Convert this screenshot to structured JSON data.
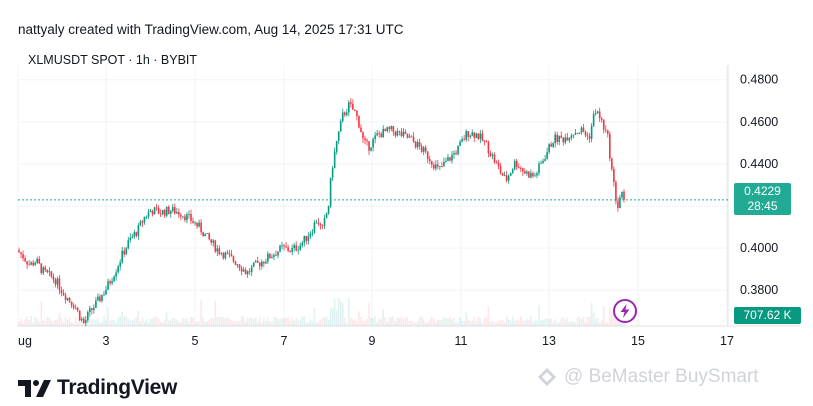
{
  "header": {
    "text": "nattyaly created with TradingView.com, Aug 14, 2025 17:31 UTC"
  },
  "symbol": {
    "text": "XLMUSDT SPOT · 1h · BYBIT"
  },
  "price_badge": {
    "price": "0.4229",
    "countdown": "28:45"
  },
  "volume_badge": {
    "text": "707.62 K"
  },
  "logo": {
    "text": "TradingView"
  },
  "watermark": {
    "text": "@ BeMaster BuySmart"
  },
  "colors": {
    "up": "#089981",
    "down": "#f23645",
    "price_line": "#22ab94",
    "grid": "#f0f3fa"
  },
  "chart_data": {
    "type": "candlestick",
    "y_ticks": [
      "0.4800",
      "0.4600",
      "0.4400",
      "0.4000",
      "0.3800"
    ],
    "x_ticks": [
      "ug",
      "3",
      "5",
      "7",
      "9",
      "11",
      "13",
      "15",
      "17"
    ],
    "ylim": [
      0.363,
      0.487
    ],
    "last_price": 0.4229,
    "path": [
      [
        0.0,
        0.399
      ],
      [
        0.2,
        0.396
      ],
      [
        0.4,
        0.392
      ],
      [
        0.6,
        0.394
      ],
      [
        0.8,
        0.389
      ],
      [
        1.0,
        0.387
      ],
      [
        1.2,
        0.385
      ],
      [
        1.4,
        0.38
      ],
      [
        1.6,
        0.376
      ],
      [
        1.8,
        0.373
      ],
      [
        1.95,
        0.368
      ],
      [
        2.1,
        0.364
      ],
      [
        2.25,
        0.369
      ],
      [
        2.5,
        0.374
      ],
      [
        2.8,
        0.381
      ],
      [
        3.1,
        0.39
      ],
      [
        3.3,
        0.397
      ],
      [
        3.5,
        0.403
      ],
      [
        3.8,
        0.409
      ],
      [
        4.0,
        0.415
      ],
      [
        4.2,
        0.418
      ],
      [
        4.5,
        0.417
      ],
      [
        4.8,
        0.418
      ],
      [
        5.1,
        0.417
      ],
      [
        5.4,
        0.414
      ],
      [
        5.7,
        0.41
      ],
      [
        6.0,
        0.404
      ],
      [
        6.3,
        0.399
      ],
      [
        6.6,
        0.396
      ],
      [
        6.9,
        0.393
      ],
      [
        7.2,
        0.388
      ],
      [
        7.4,
        0.391
      ],
      [
        7.7,
        0.394
      ],
      [
        8.0,
        0.397
      ],
      [
        8.3,
        0.4
      ],
      [
        8.6,
        0.399
      ],
      [
        8.9,
        0.402
      ],
      [
        9.2,
        0.408
      ],
      [
        9.4,
        0.414
      ],
      [
        9.55,
        0.408
      ],
      [
        9.75,
        0.42
      ],
      [
        9.85,
        0.437
      ],
      [
        10.0,
        0.45
      ],
      [
        10.2,
        0.463
      ],
      [
        10.4,
        0.468
      ],
      [
        10.6,
        0.464
      ],
      [
        10.75,
        0.457
      ],
      [
        10.85,
        0.45
      ],
      [
        11.0,
        0.448
      ],
      [
        11.3,
        0.454
      ],
      [
        11.7,
        0.456
      ],
      [
        12.0,
        0.454
      ],
      [
        12.3,
        0.452
      ],
      [
        12.6,
        0.448
      ],
      [
        12.9,
        0.443
      ],
      [
        13.2,
        0.437
      ],
      [
        13.5,
        0.442
      ],
      [
        13.8,
        0.447
      ],
      [
        14.1,
        0.455
      ],
      [
        14.4,
        0.454
      ],
      [
        14.7,
        0.449
      ],
      [
        15.0,
        0.44
      ],
      [
        15.3,
        0.432
      ],
      [
        15.6,
        0.441
      ],
      [
        15.9,
        0.436
      ],
      [
        16.2,
        0.434
      ],
      [
        16.5,
        0.443
      ],
      [
        16.8,
        0.452
      ],
      [
        17.1,
        0.452
      ],
      [
        17.4,
        0.455
      ],
      [
        17.7,
        0.456
      ],
      [
        17.9,
        0.452
      ],
      [
        18.1,
        0.466
      ],
      [
        18.3,
        0.46
      ],
      [
        18.5,
        0.452
      ],
      [
        18.6,
        0.439
      ],
      [
        18.7,
        0.428
      ],
      [
        18.8,
        0.419
      ],
      [
        18.9,
        0.426
      ],
      [
        19.0,
        0.424
      ]
    ]
  }
}
